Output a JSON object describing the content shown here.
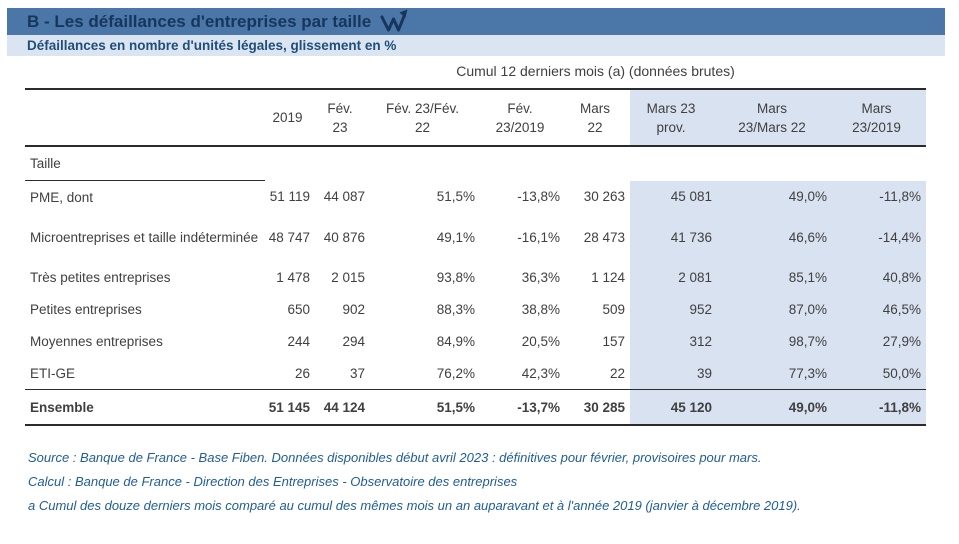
{
  "header": {
    "title": "B - Les défaillances d'entreprises par taille",
    "subtitle": "Défaillances en nombre d'unités légales, glissement en %",
    "logo_icon": "webstat-w-arrow-icon"
  },
  "colors": {
    "titlebar_bg": "#4b76a8",
    "title_text": "#16365c",
    "subtitlebar_bg": "#dbe5f1",
    "subtitle_text": "#1f4e7a",
    "shaded_column_bg": "#d9e2f0",
    "body_text": "#404040",
    "footnote_text": "#1f5c99"
  },
  "table": {
    "caption": "Cumul 12 derniers mois (a) (données brutes)",
    "row_header_label": "Taille",
    "columns": [
      {
        "line1": "2019",
        "line2": "",
        "shaded": false
      },
      {
        "line1": "Fév.",
        "line2": "23",
        "shaded": false
      },
      {
        "line1": "Fév. 23/Fév.",
        "line2": "22",
        "shaded": false
      },
      {
        "line1": "Fév.",
        "line2": "23/2019",
        "shaded": false
      },
      {
        "line1": "Mars",
        "line2": "22",
        "shaded": false
      },
      {
        "line1": "Mars 23",
        "line2": "prov.",
        "shaded": true
      },
      {
        "line1": "Mars",
        "line2": "23/Mars 22",
        "shaded": true
      },
      {
        "line1": "Mars",
        "line2": "23/2019",
        "shaded": true
      }
    ],
    "rows": [
      {
        "label": "PME, dont",
        "values": [
          "51 119",
          "44 087",
          "51,5%",
          "-13,8%",
          "30 263",
          "45 081",
          "49,0%",
          "-11,8%"
        ]
      },
      {
        "label": "Microentreprises et taille indéterminée",
        "values": [
          "48 747",
          "40 876",
          "49,1%",
          "-16,1%",
          "28 473",
          "41 736",
          "46,6%",
          "-14,4%"
        ]
      },
      {
        "label": "Très petites entreprises",
        "values": [
          "1 478",
          "2 015",
          "93,8%",
          "36,3%",
          "1 124",
          "2 081",
          "85,1%",
          "40,8%"
        ]
      },
      {
        "label": "Petites entreprises",
        "values": [
          "650",
          "902",
          "88,3%",
          "38,8%",
          "509",
          "952",
          "87,0%",
          "46,5%"
        ]
      },
      {
        "label": "Moyennes entreprises",
        "values": [
          "244",
          "294",
          "84,9%",
          "20,5%",
          "157",
          "312",
          "98,7%",
          "27,9%"
        ]
      },
      {
        "label": "ETI-GE",
        "values": [
          "26",
          "37",
          "76,2%",
          "42,3%",
          "22",
          "39",
          "77,3%",
          "50,0%"
        ]
      }
    ],
    "total_row": {
      "label": "Ensemble",
      "values": [
        "51 145",
        "44 124",
        "51,5%",
        "-13,7%",
        "30 285",
        "45 120",
        "49,0%",
        "-11,8%"
      ]
    }
  },
  "footnotes": [
    "Source : Banque de France - Base Fiben. Données disponibles début avril 2023 : définitives pour février, provisoires pour mars.",
    "Calcul : Banque de France - Direction des Entreprises - Observatoire des entreprises",
    "a Cumul des douze derniers mois comparé au cumul des mêmes mois un an auparavant et à l'année 2019 (janvier à décembre 2019)."
  ]
}
